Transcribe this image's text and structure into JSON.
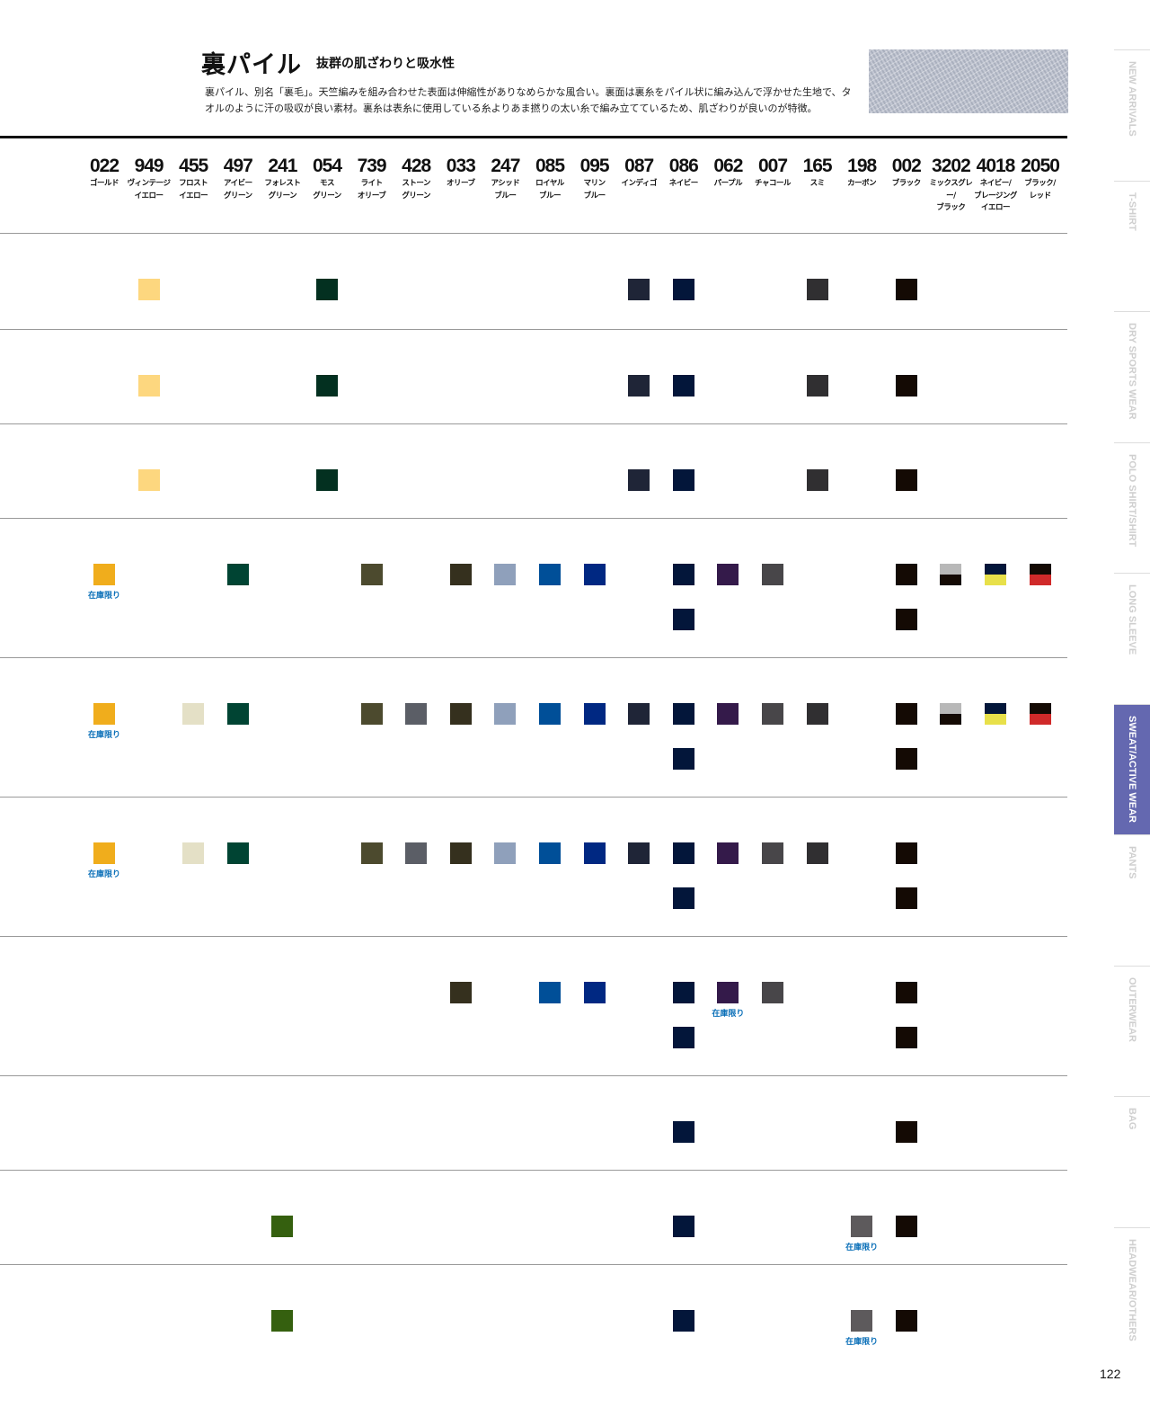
{
  "header": {
    "title": "裏パイル",
    "subtitle": "抜群の肌ざわりと吸水性",
    "description": "裏パイル、別名「裏毛」。天竺編みを組み合わせた表面は伸縮性がありなめらかな風合い。裏面は裏糸をパイル状に編み込んで浮かせた生地で、タオルのように汗の吸収が良い素材。裏糸は表糸に使用している糸よりあま撚りの太い糸で編み立てているため、肌ざわりが良いのが特徴。"
  },
  "columns": [
    {
      "code": "022",
      "name": "ゴールド",
      "colors": [
        "#f0ad1c"
      ]
    },
    {
      "code": "949",
      "name": "ヴィンテージ\nイエロー",
      "colors": [
        "#fdd77f"
      ]
    },
    {
      "code": "455",
      "name": "フロスト\nイエロー",
      "colors": [
        "#e4e0c6"
      ]
    },
    {
      "code": "497",
      "name": "アイビー\nグリーン",
      "colors": [
        "#004433"
      ]
    },
    {
      "code": "241",
      "name": "フォレスト\nグリーン",
      "colors": [
        "#35600f"
      ]
    },
    {
      "code": "054",
      "name": "モス\nグリーン",
      "colors": [
        "#033020"
      ]
    },
    {
      "code": "739",
      "name": "ライト\nオリーブ",
      "colors": [
        "#4c4a2e"
      ]
    },
    {
      "code": "428",
      "name": "ストーン\nグリーン",
      "colors": [
        "#5b5e66"
      ]
    },
    {
      "code": "033",
      "name": "オリーブ",
      "colors": [
        "#35301e"
      ]
    },
    {
      "code": "247",
      "name": "アシッド\nブルー",
      "colors": [
        "#8fa0bb"
      ]
    },
    {
      "code": "085",
      "name": "ロイヤル\nブルー",
      "colors": [
        "#004f98"
      ]
    },
    {
      "code": "095",
      "name": "マリン\nブルー",
      "colors": [
        "#002882"
      ]
    },
    {
      "code": "087",
      "name": "インディゴ",
      "colors": [
        "#1f2537"
      ]
    },
    {
      "code": "086",
      "name": "ネイビー",
      "colors": [
        "#03163a"
      ]
    },
    {
      "code": "062",
      "name": "パープル",
      "colors": [
        "#341a4a"
      ]
    },
    {
      "code": "007",
      "name": "チャコール",
      "colors": [
        "#484649"
      ]
    },
    {
      "code": "165",
      "name": "スミ",
      "colors": [
        "#302f31"
      ]
    },
    {
      "code": "198",
      "name": "カーボン",
      "colors": [
        "#5d5a5c"
      ]
    },
    {
      "code": "002",
      "name": "ブラック",
      "colors": [
        "#140a04"
      ]
    },
    {
      "code": "3202",
      "name": "ミックスグレー/\nブラック",
      "colors": [
        "#b8b8b8",
        "#140a04"
      ]
    },
    {
      "code": "4018",
      "name": "ネイビー/\nブレージング\nイエロー",
      "colors": [
        "#03163a",
        "#e8e04a"
      ]
    },
    {
      "code": "2050",
      "name": "ブラック/\nレッド",
      "colors": [
        "#140a04",
        "#d02a2a"
      ]
    }
  ],
  "note_text": "在庫限り",
  "rows": [
    {
      "line1": [
        "949",
        "054",
        "087",
        "086",
        "165",
        "002"
      ],
      "line2": [],
      "notes": []
    },
    {
      "line1": [
        "949",
        "054",
        "087",
        "086",
        "165",
        "002"
      ],
      "line2": [],
      "notes": []
    },
    {
      "line1": [
        "949",
        "054",
        "087",
        "086",
        "165",
        "002"
      ],
      "line2": [],
      "notes": []
    },
    {
      "line1": [
        "022",
        "497",
        "739",
        "033",
        "247",
        "085",
        "095",
        "086",
        "062",
        "007",
        "002",
        "3202",
        "4018",
        "2050"
      ],
      "line2": [
        "086",
        "002"
      ],
      "notes": [
        "022"
      ]
    },
    {
      "line1": [
        "022",
        "455",
        "497",
        "739",
        "428",
        "033",
        "247",
        "085",
        "095",
        "087",
        "086",
        "062",
        "007",
        "165",
        "002",
        "3202",
        "4018",
        "2050"
      ],
      "line2": [
        "086",
        "002"
      ],
      "notes": [
        "022"
      ]
    },
    {
      "line1": [
        "022",
        "455",
        "497",
        "739",
        "428",
        "033",
        "247",
        "085",
        "095",
        "087",
        "086",
        "062",
        "007",
        "165",
        "002"
      ],
      "line2": [
        "086",
        "002"
      ],
      "notes": [
        "022"
      ]
    },
    {
      "line1": [
        "033",
        "085",
        "095",
        "086",
        "062",
        "007",
        "002"
      ],
      "line2": [
        "086",
        "002"
      ],
      "notes": [
        "062"
      ]
    },
    {
      "line1": [
        "086",
        "002"
      ],
      "line2": [],
      "notes": []
    },
    {
      "line1": [
        "241",
        "086",
        "198",
        "002"
      ],
      "line2": [],
      "notes": [
        "198"
      ]
    },
    {
      "line1": [
        "241",
        "086",
        "198",
        "002"
      ],
      "line2": [],
      "notes": [
        "198"
      ]
    }
  ],
  "sidebar": {
    "tabs": [
      "NEW ARRIVALS",
      "T-SHIRT",
      "DRY SPORTS WEAR",
      "POLO SHIRT/SHIRT",
      "LONG SLEEVE",
      "SWEAT/ACTIVE WEAR",
      "PANTS",
      "OUTERWEAR",
      "BAG",
      "HEADWEAR/OTHERS"
    ],
    "active": "SWEAT/ACTIVE WEAR"
  },
  "page_number": "122"
}
